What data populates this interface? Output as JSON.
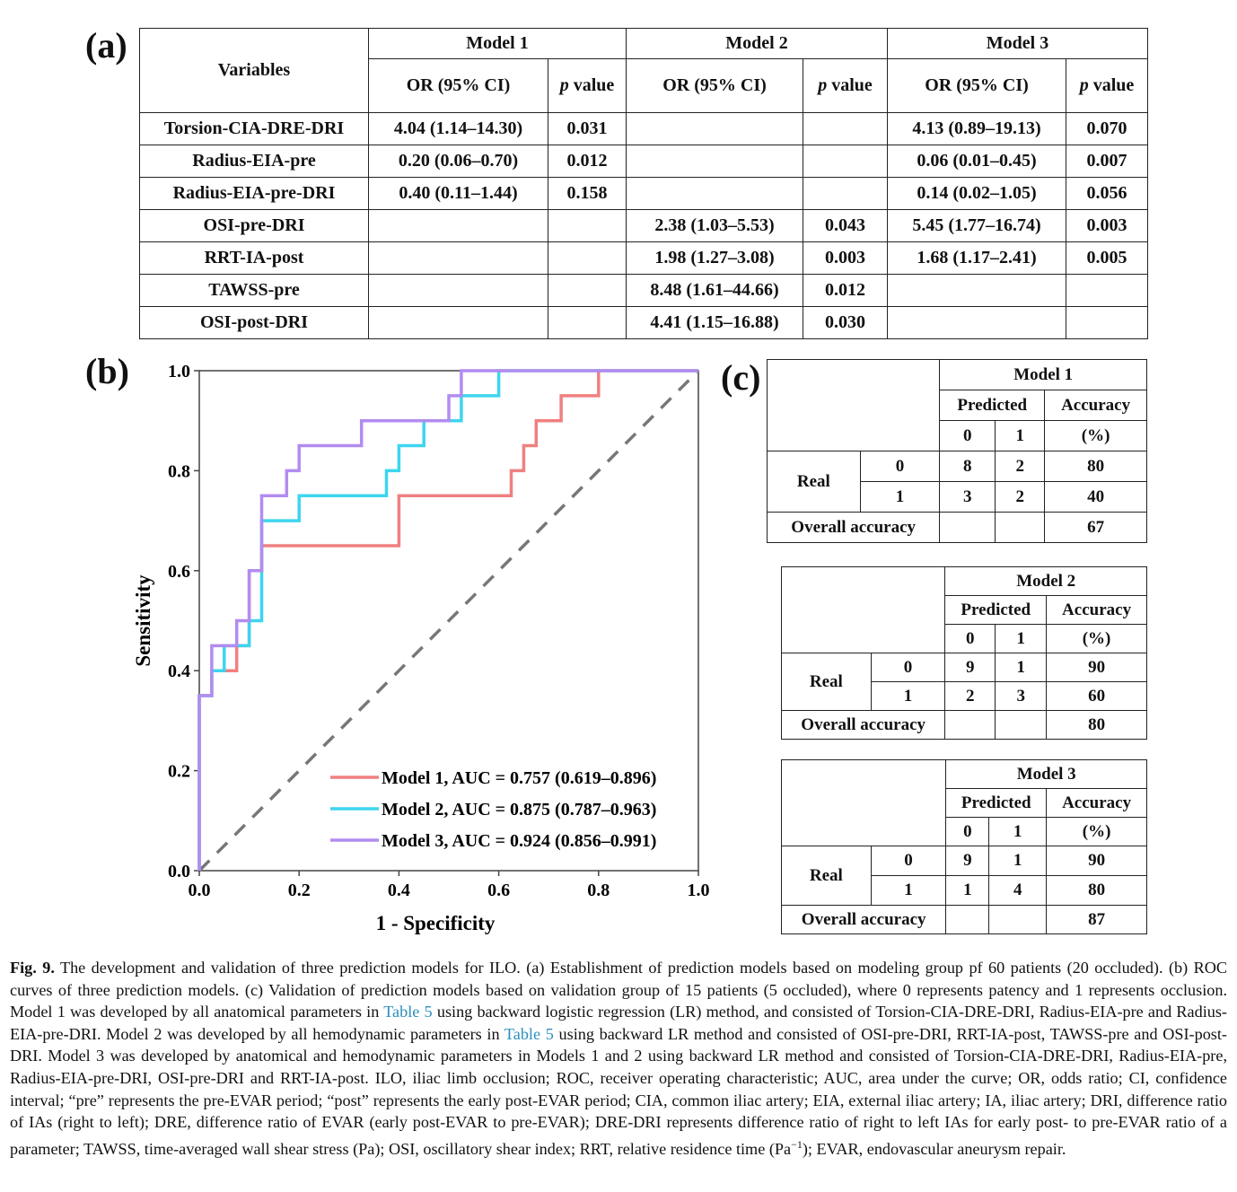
{
  "panel_a": {
    "label": "(a)",
    "header": {
      "variables": "Variables",
      "models": [
        "Model 1",
        "Model 2",
        "Model 3"
      ],
      "or": "OR (95% CI)",
      "p_italic": "p",
      "p_rest": " value"
    },
    "rows": [
      {
        "name": "Torsion-CIA-DRE-DRI",
        "m1_or": "4.04  (1.14–14.30)",
        "m1_p": "0.031",
        "m2_or": "",
        "m2_p": "",
        "m3_or": "4.13  (0.89–19.13)",
        "m3_p": "0.070"
      },
      {
        "name": "Radius-EIA-pre",
        "m1_or": "0.20  (0.06–0.70)",
        "m1_p": "0.012",
        "m2_or": "",
        "m2_p": "",
        "m3_or": "0.06  (0.01–0.45)",
        "m3_p": "0.007"
      },
      {
        "name": "Radius-EIA-pre-DRI",
        "m1_or": "0.40  (0.11–1.44)",
        "m1_p": "0.158",
        "m2_or": "",
        "m2_p": "",
        "m3_or": "0.14  (0.02–1.05)",
        "m3_p": "0.056"
      },
      {
        "name": "OSI-pre-DRI",
        "m1_or": "",
        "m1_p": "",
        "m2_or": "2.38  (1.03–5.53)",
        "m2_p": "0.043",
        "m3_or": "5.45  (1.77–16.74)",
        "m3_p": "0.003"
      },
      {
        "name": "RRT-IA-post",
        "m1_or": "",
        "m1_p": "",
        "m2_or": "1.98  (1.27–3.08)",
        "m2_p": "0.003",
        "m3_or": "1.68  (1.17–2.41)",
        "m3_p": "0.005"
      },
      {
        "name": "TAWSS-pre",
        "m1_or": "",
        "m1_p": "",
        "m2_or": "8.48  (1.61–44.66)",
        "m2_p": "0.012",
        "m3_or": "",
        "m3_p": ""
      },
      {
        "name": "OSI-post-DRI",
        "m1_or": "",
        "m1_p": "",
        "m2_or": "4.41  (1.15–16.88)",
        "m2_p": "0.030",
        "m3_or": "",
        "m3_p": ""
      }
    ]
  },
  "panel_b": {
    "label": "(b)",
    "chart_data": {
      "type": "line",
      "title": "",
      "xlabel": "1 - Specificity",
      "ylabel": "Sensitivity",
      "xlim": [
        0,
        1
      ],
      "ylim": [
        0,
        1
      ],
      "xticks": [
        "0.0",
        "0.2",
        "0.4",
        "0.6",
        "0.8",
        "1.0"
      ],
      "yticks": [
        "0.0",
        "0.2",
        "0.4",
        "0.6",
        "0.8",
        "1.0"
      ],
      "grid": false,
      "legend_position": "bottom-right",
      "reference_line": {
        "x": [
          0,
          1
        ],
        "y": [
          0,
          1
        ],
        "color": "#777777",
        "style": "dashed"
      },
      "series": [
        {
          "name": "Model 1, AUC = 0.757 (0.619–0.896)",
          "color": "#f08080",
          "x": [
            0,
            0,
            0.025,
            0.025,
            0.075,
            0.075,
            0.1,
            0.1,
            0.125,
            0.125,
            0.4,
            0.4,
            0.625,
            0.625,
            0.65,
            0.65,
            0.675,
            0.675,
            0.725,
            0.725,
            0.8,
            0.8,
            1
          ],
          "y": [
            0,
            0.35,
            0.35,
            0.4,
            0.4,
            0.45,
            0.45,
            0.6,
            0.6,
            0.65,
            0.65,
            0.75,
            0.75,
            0.8,
            0.8,
            0.85,
            0.85,
            0.9,
            0.9,
            0.95,
            0.95,
            1,
            1
          ]
        },
        {
          "name": "Model 2, AUC = 0.875 (0.787–0.963)",
          "color": "#3dd5ee",
          "x": [
            0,
            0,
            0.025,
            0.025,
            0.05,
            0.05,
            0.1,
            0.1,
            0.125,
            0.125,
            0.2,
            0.2,
            0.375,
            0.375,
            0.4,
            0.4,
            0.45,
            0.45,
            0.525,
            0.525,
            0.6,
            0.6,
            1
          ],
          "y": [
            0,
            0.35,
            0.35,
            0.4,
            0.4,
            0.45,
            0.45,
            0.5,
            0.5,
            0.7,
            0.7,
            0.75,
            0.75,
            0.8,
            0.8,
            0.85,
            0.85,
            0.9,
            0.9,
            0.95,
            0.95,
            1,
            1
          ]
        },
        {
          "name": "Model 3, AUC = 0.924 (0.856–0.991)",
          "color": "#b28cf0",
          "x": [
            0,
            0,
            0.025,
            0.025,
            0.075,
            0.075,
            0.1,
            0.1,
            0.125,
            0.125,
            0.175,
            0.175,
            0.2,
            0.2,
            0.325,
            0.325,
            0.5,
            0.5,
            0.525,
            0.525,
            1
          ],
          "y": [
            0,
            0.35,
            0.35,
            0.45,
            0.45,
            0.5,
            0.5,
            0.6,
            0.6,
            0.75,
            0.75,
            0.8,
            0.8,
            0.85,
            0.85,
            0.9,
            0.9,
            0.95,
            0.95,
            1,
            1
          ]
        }
      ]
    }
  },
  "panel_c": {
    "label": "(c)",
    "labels": {
      "predicted": "Predicted",
      "accuracy": "Accuracy",
      "pct": "(%)",
      "zero": "0",
      "one": "1",
      "real": "Real",
      "overall": "Overall accuracy"
    },
    "tables": [
      {
        "model": "Model 1",
        "r0": [
          "8",
          "2",
          "80"
        ],
        "r1": [
          "3",
          "2",
          "40"
        ],
        "overall": "67"
      },
      {
        "model": "Model 2",
        "r0": [
          "9",
          "1",
          "90"
        ],
        "r1": [
          "2",
          "3",
          "60"
        ],
        "overall": "80"
      },
      {
        "model": "Model 3",
        "r0": [
          "9",
          "1",
          "90"
        ],
        "r1": [
          "1",
          "4",
          "80"
        ],
        "overall": "87"
      }
    ]
  },
  "caption": {
    "fig": "Fig. 9.",
    "p1": " The development and validation of three prediction models for ILO. (a) Establishment of prediction models based on modeling group pf 60 patients (20 occluded). (b) ROC curves of three prediction models. (c) Validation of prediction models based on validation group of 15 patients (5 occluded), where 0 represents patency and 1 represents occlusion. Model 1 was developed by all anatomical parameters in ",
    "link1": "Table 5",
    "p2": " using backward logistic regression (LR) method, and consisted of Torsion-CIA-DRE-DRI, Radius-EIA-pre and Radius-EIA-pre-DRI. Model 2 was developed by all hemodynamic parameters in ",
    "link2": "Table 5",
    "p3": " using backward LR method and consisted of OSI-pre-DRI, RRT-IA-post, TAWSS-pre and OSI-post-DRI. Model 3 was developed by anatomical and hemodynamic parameters in Models 1 and 2 using backward LR method and consisted of Torsion-CIA-DRE-DRI, Radius-EIA-pre, Radius-EIA-pre-DRI, OSI-pre-DRI and RRT-IA-post. ILO, iliac limb occlusion; ROC, receiver operating characteristic; AUC, area under the curve; OR, odds ratio; CI, confidence interval; “pre” represents the pre-EVAR period; “post” represents the early post-EVAR period; CIA, common iliac artery; EIA, external iliac artery; IA, iliac artery; DRI, difference ratio of IAs (right to left); DRE, difference ratio of EVAR (early post-EVAR to pre-EVAR); DRE-DRI represents difference ratio of right to left IAs for early post- to pre-EVAR ratio of a parameter; TAWSS, time-averaged wall shear stress (Pa); OSI, oscillatory shear index; RRT, relative residence time (Pa",
    "sup": "−1",
    "p4": "); EVAR, endovascular aneurysm repair."
  }
}
